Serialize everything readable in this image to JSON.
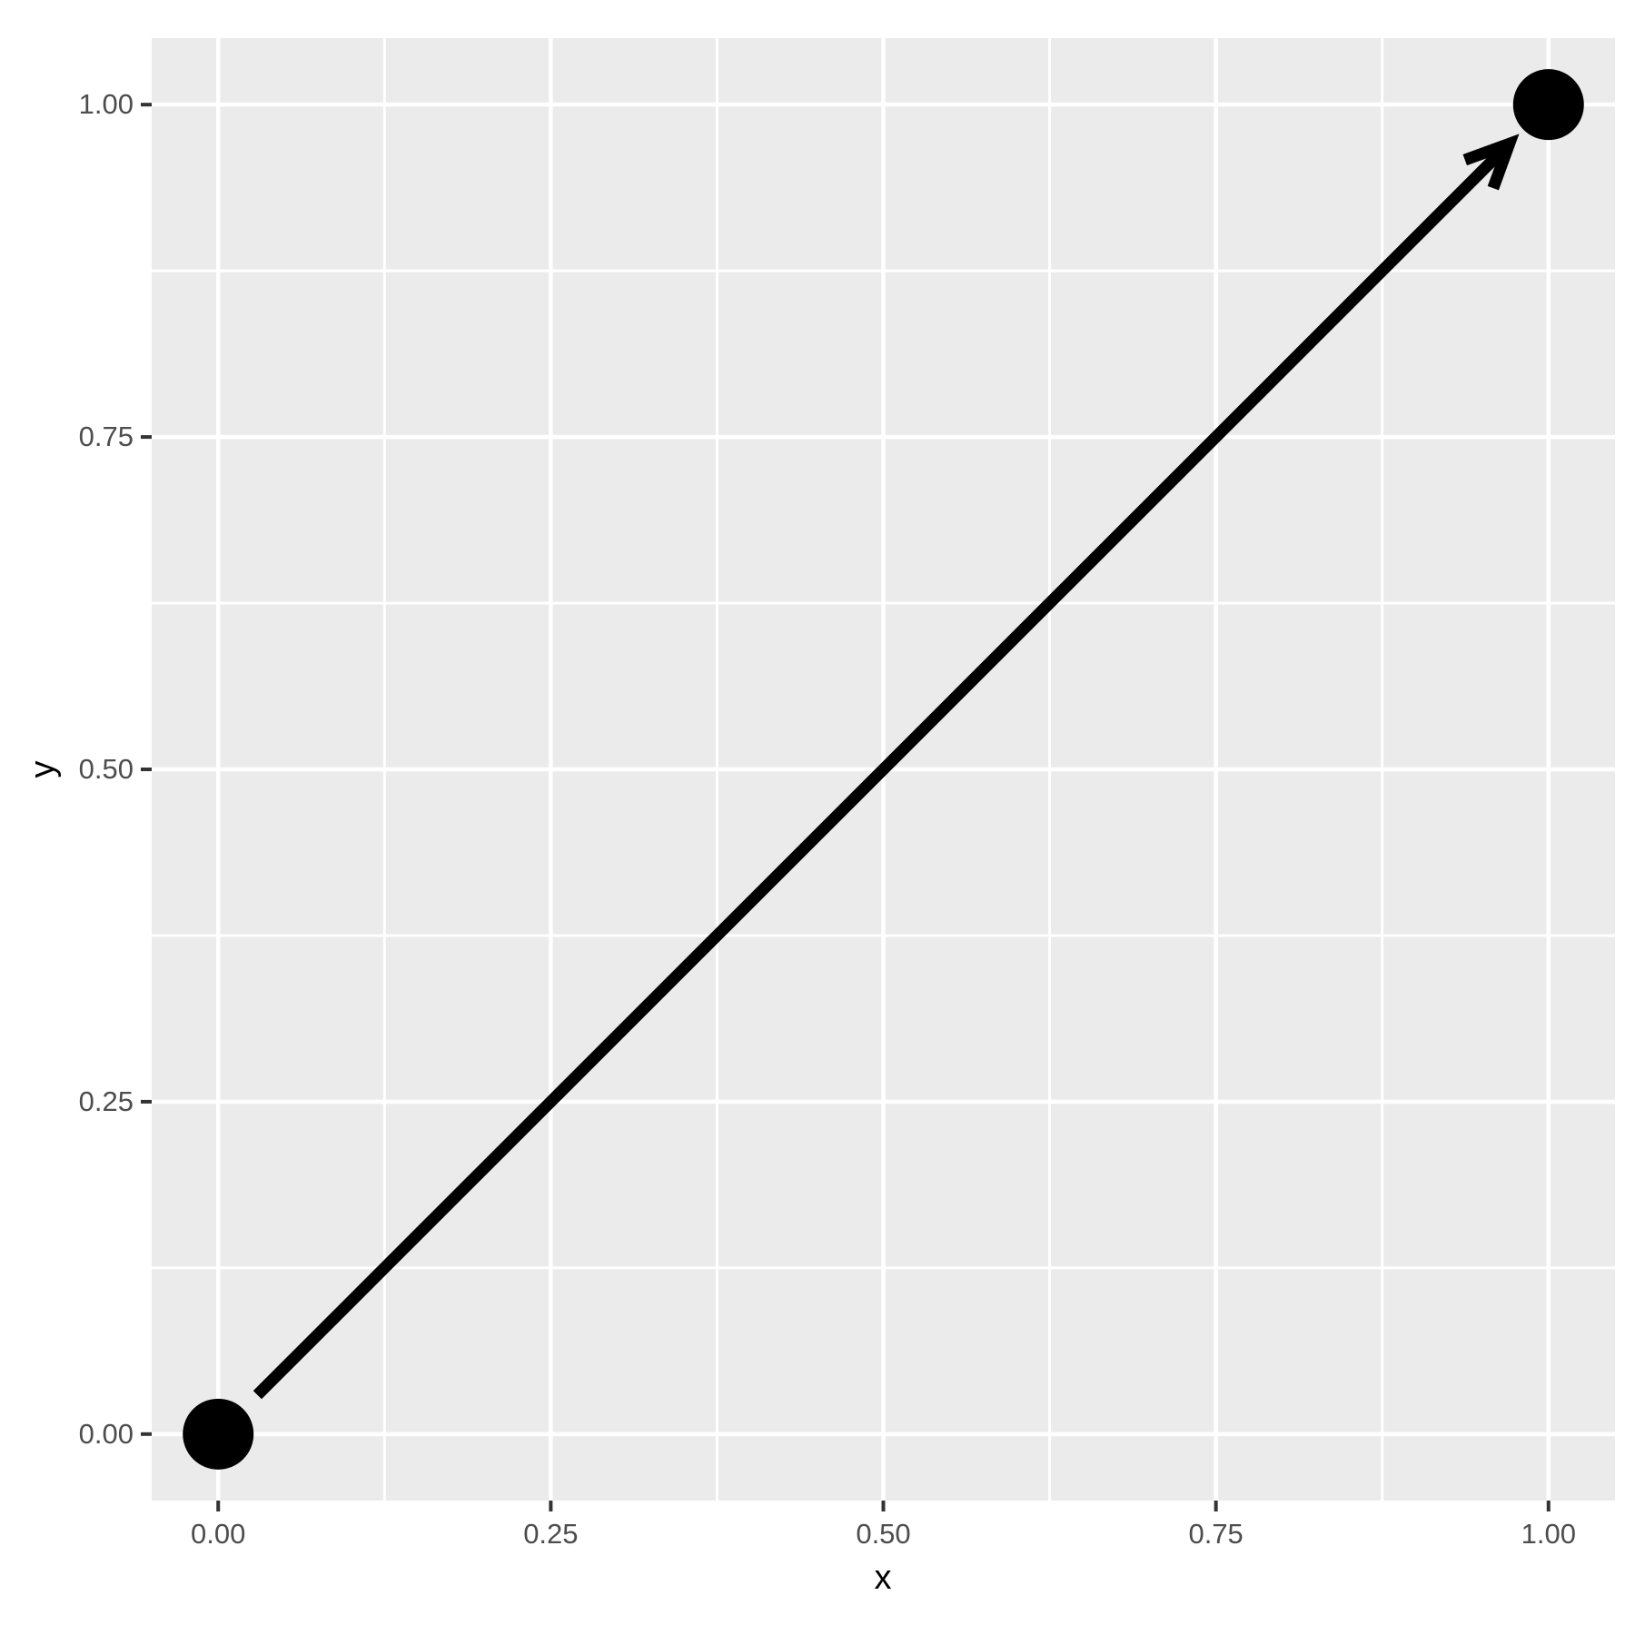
{
  "chart_data": {
    "type": "scatter",
    "title": "",
    "xlabel": "x",
    "ylabel": "y",
    "xlim": [
      -0.05,
      1.05
    ],
    "ylim": [
      -0.05,
      1.05
    ],
    "x_major_ticks": [
      0,
      0.25,
      0.5,
      0.75,
      1.0
    ],
    "y_major_ticks": [
      0,
      0.25,
      0.5,
      0.75,
      1.0
    ],
    "x_tick_labels": [
      "0.00",
      "0.25",
      "0.50",
      "0.75",
      "1.00"
    ],
    "y_tick_labels": [
      "0.00",
      "0.25",
      "0.50",
      "0.75",
      "1.00"
    ],
    "x_minor_ticks": [
      0.125,
      0.375,
      0.625,
      0.875
    ],
    "y_minor_ticks": [
      0.125,
      0.375,
      0.625,
      0.875
    ],
    "grid": "major+minor",
    "legend": "none",
    "points": [
      {
        "x": 0,
        "y": 0
      },
      {
        "x": 1,
        "y": 1
      }
    ],
    "segments": [
      {
        "x": 0,
        "y": 0,
        "xend": 1,
        "yend": 1,
        "arrow": "open",
        "description": "arrow from (0,0) to (1,1)"
      }
    ],
    "style": {
      "panel_background": "#EBEBEB",
      "grid_color": "#FFFFFF",
      "point_color": "#000000",
      "line_color": "#000000",
      "tick_label_color": "#4D4D4D",
      "axis_title_color": "#000000",
      "tick_mark_color": "#333333"
    }
  }
}
